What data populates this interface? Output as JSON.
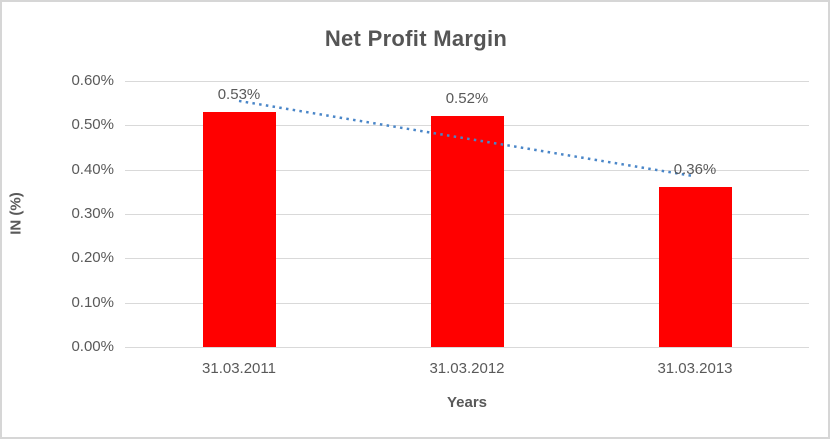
{
  "chart_data": {
    "type": "bar",
    "title": "Net Profit Margin",
    "xlabel": "Years",
    "ylabel": "IN (%)",
    "categories": [
      "31.03.2011",
      "31.03.2012",
      "31.03.2013"
    ],
    "values": [
      0.53,
      0.52,
      0.36
    ],
    "data_labels": [
      "0.53%",
      "0.52%",
      "0.36%"
    ],
    "y_ticks": [
      "0.60%",
      "0.50%",
      "0.40%",
      "0.30%",
      "0.20%",
      "0.10%",
      "0.00%"
    ],
    "ylim": [
      0,
      0.6
    ],
    "grid": true,
    "legend": "none",
    "bar_color": "#ff0000",
    "gridline_color": "#d9d9d9",
    "text_color": "#595959",
    "trendline": {
      "type": "linear",
      "style": "dotted",
      "color": "#4a86c8",
      "start_value": 0.555,
      "end_value": 0.385
    }
  }
}
